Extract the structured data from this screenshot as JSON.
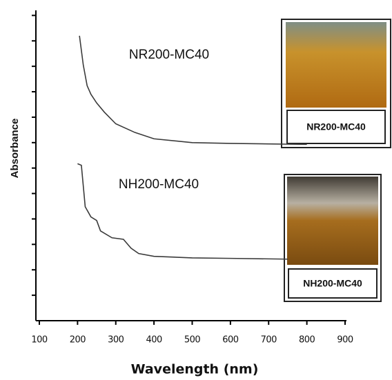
{
  "chart_data": {
    "type": "line",
    "x_label": "Wavelength (nm)",
    "y_label": "Absorbance",
    "xlim": [
      100,
      900
    ],
    "xticks": [
      100,
      200,
      300,
      400,
      500,
      600,
      700,
      800,
      900
    ],
    "ylim": [
      0,
      12.2
    ],
    "yticks": [
      1,
      2,
      3,
      4,
      5,
      6,
      7,
      8,
      9,
      10,
      11,
      12
    ],
    "series": [
      {
        "name": "NR200-MC40",
        "color": "#3a3a3a",
        "x": [
          205,
          215,
          225,
          235,
          250,
          270,
          300,
          350,
          400,
          500,
          600,
          700,
          800
        ],
        "values": [
          11.2,
          10.05,
          9.24,
          8.9,
          8.56,
          8.2,
          7.74,
          7.4,
          7.15,
          7.0,
          6.97,
          6.95,
          6.93
        ]
      },
      {
        "name": "NH200-MC40",
        "color": "#3a3a3a",
        "x": [
          200,
          210,
          220,
          235,
          250,
          260,
          290,
          320,
          340,
          360,
          400,
          500,
          600,
          750
        ],
        "values": [
          6.17,
          6.11,
          4.48,
          4.08,
          3.94,
          3.53,
          3.26,
          3.2,
          2.85,
          2.64,
          2.53,
          2.47,
          2.45,
          2.42
        ]
      }
    ],
    "insets": [
      {
        "label": "NR200-MC40"
      },
      {
        "label": "NH200-MC40"
      }
    ]
  }
}
